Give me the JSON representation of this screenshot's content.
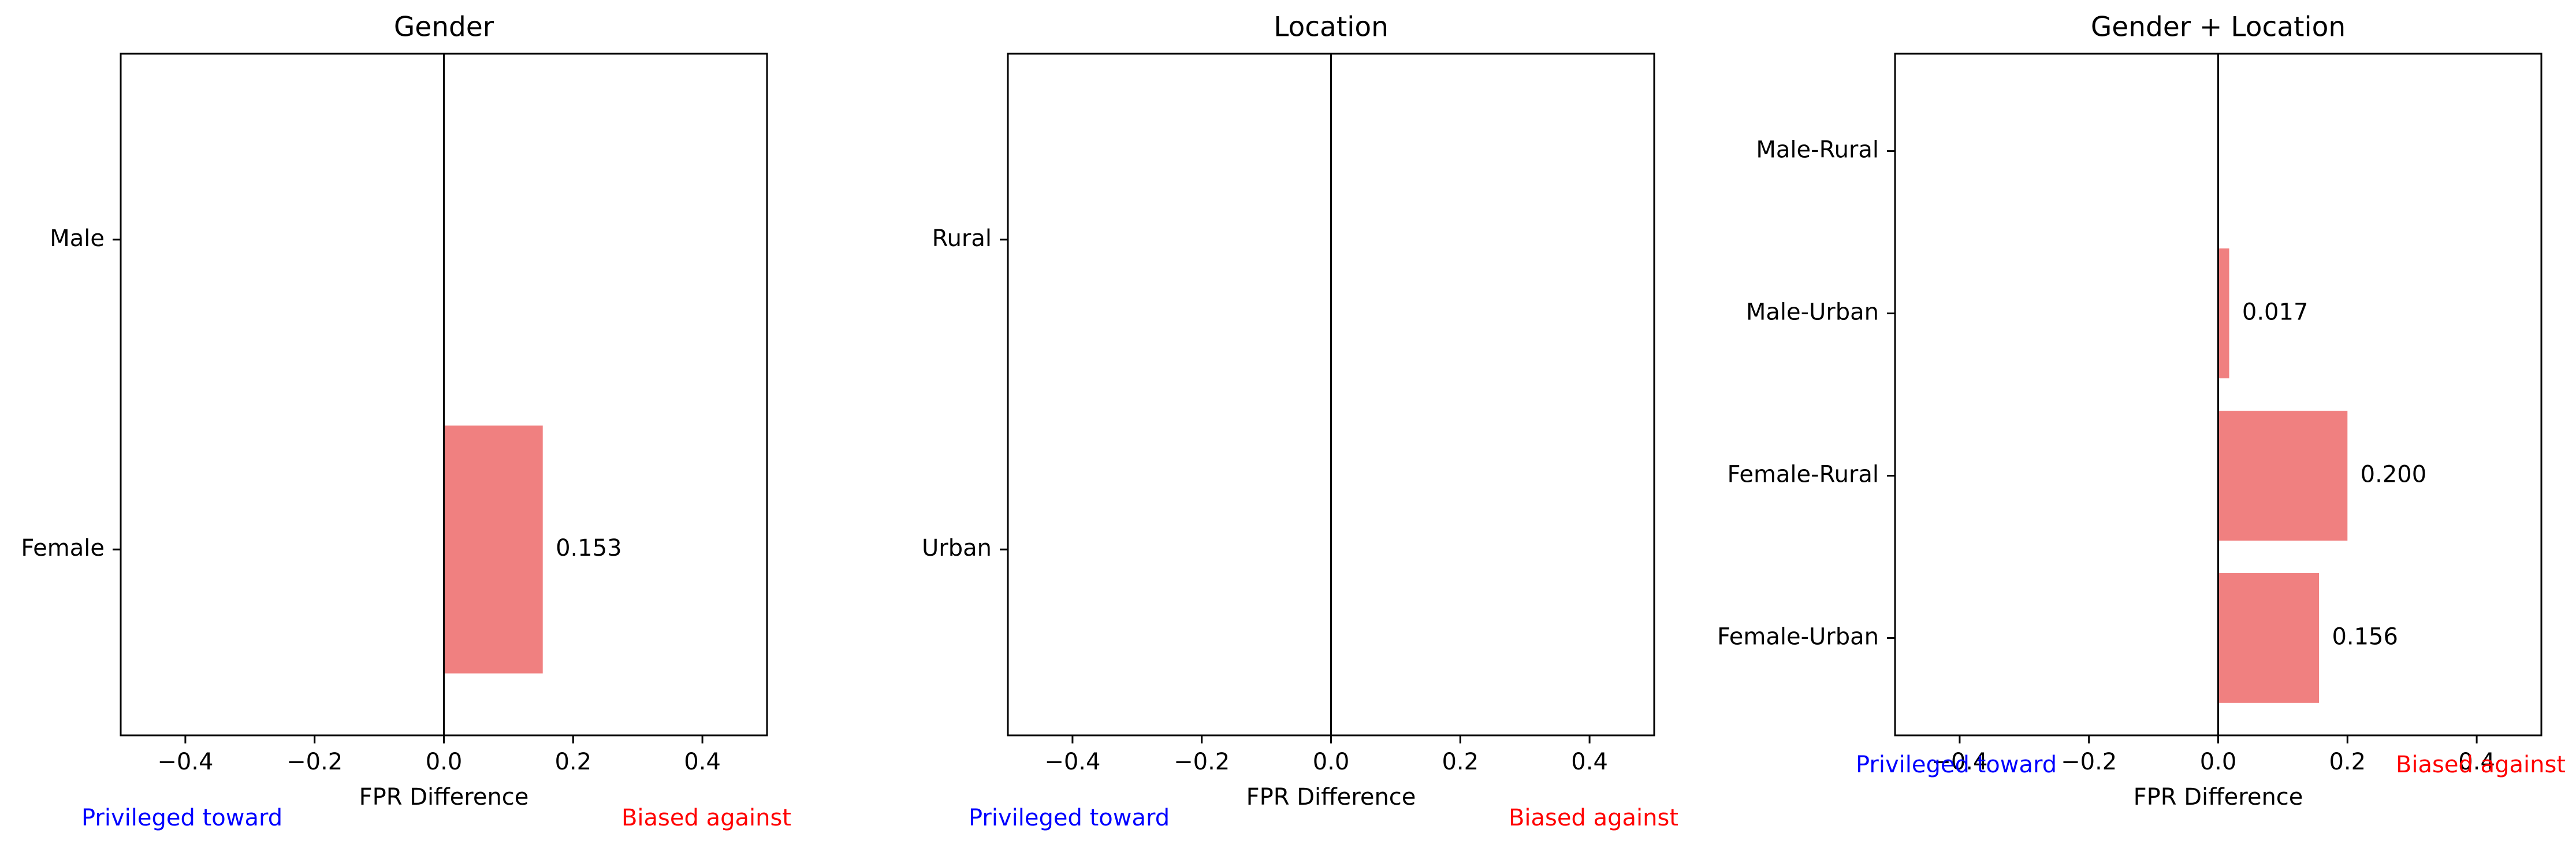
{
  "chart_data": [
    {
      "type": "bar",
      "orientation": "horizontal",
      "title": "Gender",
      "xlabel": "FPR Difference",
      "ylabel": "",
      "xlim": [
        -0.5,
        0.5
      ],
      "xticks": [
        -0.4,
        -0.2,
        0.0,
        0.2,
        0.4
      ],
      "xtick_labels": [
        "−0.4",
        "−0.2",
        "0.0",
        "0.2",
        "0.4"
      ],
      "categories": [
        "Female",
        "Male"
      ],
      "values": [
        0.153,
        null
      ],
      "value_labels": [
        "0.153",
        ""
      ],
      "annotations": {
        "left": "Privileged toward",
        "right": "Biased against"
      },
      "zero_line": true,
      "grid": false
    },
    {
      "type": "bar",
      "orientation": "horizontal",
      "title": "Location",
      "xlabel": "FPR Difference",
      "ylabel": "",
      "xlim": [
        -0.5,
        0.5
      ],
      "xticks": [
        -0.4,
        -0.2,
        0.0,
        0.2,
        0.4
      ],
      "xtick_labels": [
        "−0.4",
        "−0.2",
        "0.0",
        "0.2",
        "0.4"
      ],
      "categories": [
        "Urban",
        "Rural"
      ],
      "values": [
        null,
        null
      ],
      "value_labels": [
        "",
        ""
      ],
      "annotations": {
        "left": "Privileged toward",
        "right": "Biased against"
      },
      "zero_line": true,
      "grid": false
    },
    {
      "type": "bar",
      "orientation": "horizontal",
      "title": "Gender + Location",
      "xlabel": "FPR Difference",
      "ylabel": "",
      "xlim": [
        -0.5,
        0.5
      ],
      "xticks": [
        -0.4,
        -0.2,
        0.0,
        0.2,
        0.4
      ],
      "xtick_labels": [
        "−0.4",
        "−0.2",
        "0.0",
        "0.2",
        "0.4"
      ],
      "categories": [
        "Female-Urban",
        "Female-Rural",
        "Male-Urban",
        "Male-Rural"
      ],
      "values": [
        0.156,
        0.2,
        0.017,
        null
      ],
      "value_labels": [
        "0.156",
        "0.200",
        "0.017",
        ""
      ],
      "annotations": {
        "left": "Privileged toward",
        "right": "Biased against"
      },
      "zero_line": true,
      "grid": false
    }
  ],
  "colors": {
    "bar": "#f08080",
    "privileged_text": "#0000ff",
    "biased_text": "#ff0000",
    "axis": "#000000"
  }
}
